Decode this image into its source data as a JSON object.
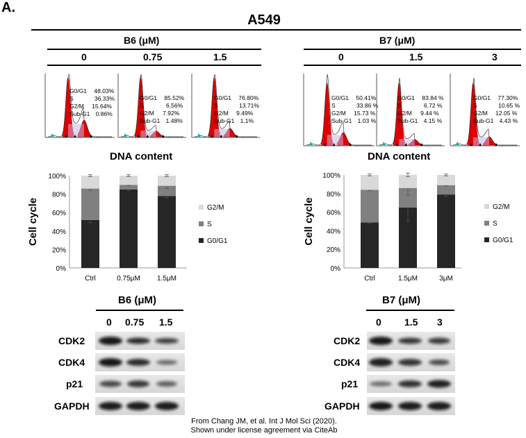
{
  "panel_label": "A.",
  "cell_line": "A549",
  "left": {
    "compound": "B6 (μM)",
    "doses": [
      "0",
      "0.75",
      "1.5"
    ],
    "flow": [
      {
        "rows": [
          [
            "G0/G1",
            "48.03%"
          ],
          [
            "S",
            "36.33%"
          ],
          [
            "G2/M",
            "15.64%"
          ],
          [
            "Sub-G1",
            "0.86%"
          ]
        ]
      },
      {
        "rows": [
          [
            "G0/G1",
            "85.52%"
          ],
          [
            "S",
            "6.56%"
          ],
          [
            "G2/M",
            "7.92%"
          ],
          [
            "Sub-G1",
            "1.48%"
          ]
        ]
      },
      {
        "rows": [
          [
            "G0/G1",
            "76.80%"
          ],
          [
            "S",
            "13.71%"
          ],
          [
            "G2/M",
            "9.49%"
          ],
          [
            "Sub-G1",
            "1.1%"
          ]
        ]
      }
    ],
    "dna_label": "DNA content",
    "wb_compound": "B6 (μM)",
    "wb_doses": [
      "0",
      "0.75",
      "1.5"
    ],
    "wb_proteins": [
      "CDK2",
      "CDK4",
      "p21",
      "GAPDH"
    ]
  },
  "right": {
    "compound": "B7 (μM)",
    "doses": [
      "0",
      "1.5",
      "3"
    ],
    "flow": [
      {
        "rows": [
          [
            "G0/G1",
            "50.41%"
          ],
          [
            "S",
            "33.86 %"
          ],
          [
            "G2/M",
            "15.73 %"
          ],
          [
            "Sub-G1",
            "1.03 %"
          ]
        ]
      },
      {
        "rows": [
          [
            "G0/G1",
            "83.84 %"
          ],
          [
            "S",
            "6.72 %"
          ],
          [
            "G2/M",
            "9.44 %"
          ],
          [
            "Sub-G1",
            "4.15 %"
          ]
        ]
      },
      {
        "rows": [
          [
            "G0/G1",
            "77.30%"
          ],
          [
            "S",
            "10.65 %"
          ],
          [
            "G2/M",
            "12.05 %"
          ],
          [
            "Sub-G1",
            "4.43 %"
          ]
        ]
      }
    ],
    "dna_label": "DNA content",
    "wb_compound": "B7 (μM)",
    "wb_doses": [
      "0",
      "1.5",
      "3"
    ],
    "wb_proteins": [
      "CDK2",
      "CDK4",
      "p21",
      "GAPDH"
    ]
  },
  "colors": {
    "g0g1": "#262626",
    "s": "#808080",
    "g2m": "#d9d9d9",
    "flow_red": "#e00000"
  },
  "chart_data": [
    {
      "type": "bar",
      "stacked": true,
      "categories": [
        "Ctrl",
        "0.75μM",
        "1.5μM"
      ],
      "series": [
        {
          "name": "G0/G1",
          "values": [
            52,
            85,
            78
          ],
          "errors": [
            3,
            1,
            2
          ]
        },
        {
          "name": "S",
          "values": [
            34,
            5,
            11
          ],
          "errors": [
            2,
            1,
            3
          ]
        },
        {
          "name": "G2/M",
          "values": [
            14,
            10,
            11
          ],
          "errors": [
            1,
            1,
            1
          ]
        }
      ],
      "ylabel": "Cell cycle",
      "yticks": [
        "0%",
        "20%",
        "40%",
        "60%",
        "80%",
        "100%"
      ],
      "ylim": [
        0,
        100
      ],
      "legend_position": "right"
    },
    {
      "type": "bar",
      "stacked": true,
      "categories": [
        "Ctrl",
        "1.5μM",
        "3μM"
      ],
      "series": [
        {
          "name": "G0/G1",
          "values": [
            49,
            65,
            79
          ],
          "errors": [
            1,
            15,
            2
          ]
        },
        {
          "name": "S",
          "values": [
            35,
            21,
            10
          ],
          "errors": [
            1,
            8,
            1
          ]
        },
        {
          "name": "G2/M",
          "values": [
            16,
            14,
            11
          ],
          "errors": [
            1,
            2,
            1
          ]
        }
      ],
      "ylabel": "Cell cycle",
      "yticks": [
        "0%",
        "20%",
        "40%",
        "60%",
        "80%",
        "100%"
      ],
      "ylim": [
        0,
        100
      ],
      "legend_position": "right"
    }
  ],
  "credit_line1": "From Chang JM, et al. Int J Mol Sci (2020).",
  "credit_line2": "Shown under license agreement via CiteAb"
}
